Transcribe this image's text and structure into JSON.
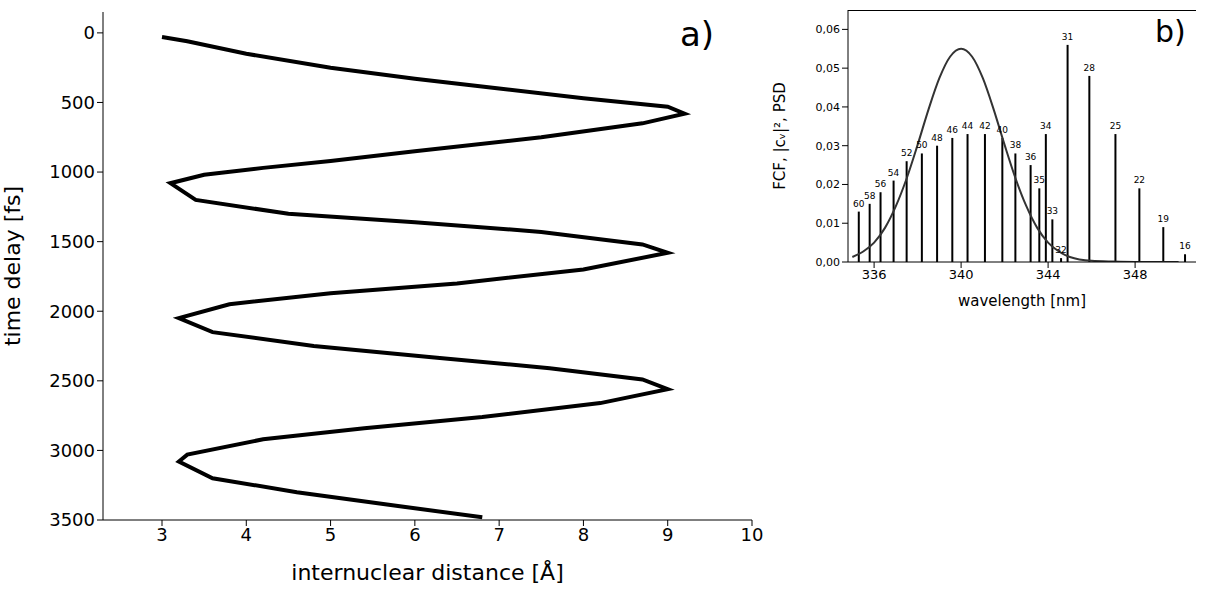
{
  "chart_data": [
    {
      "type": "line",
      "title": "a)",
      "x_label": "internuclear distance [Å]",
      "y_label": "time delay [fs]",
      "color": "#000000",
      "x": [
        3.0,
        3.3,
        4.0,
        5.0,
        6.0,
        7.0,
        8.0,
        9.0,
        9.2,
        8.7,
        7.5,
        6.0,
        5.0,
        4.2,
        3.5,
        3.1,
        3.4,
        4.5,
        6.0,
        7.5,
        8.7,
        9.0,
        8.0,
        6.5,
        5.0,
        3.8,
        3.2,
        3.6,
        4.8,
        6.2,
        7.6,
        8.7,
        9.0,
        8.2,
        6.8,
        5.4,
        4.2,
        3.3,
        3.2,
        3.6,
        4.6,
        5.8,
        6.8
      ],
      "values": [
        30,
        60,
        150,
        250,
        330,
        400,
        470,
        530,
        580,
        650,
        750,
        850,
        920,
        970,
        1020,
        1080,
        1200,
        1300,
        1360,
        1430,
        1520,
        1580,
        1700,
        1800,
        1870,
        1950,
        2050,
        2150,
        2250,
        2330,
        2410,
        2490,
        2560,
        2660,
        2760,
        2840,
        2920,
        3030,
        3080,
        3200,
        3300,
        3400,
        3480
      ],
      "xlim": [
        2.3,
        10
      ],
      "xticks": [
        3,
        4,
        5,
        6,
        7,
        8,
        9,
        10
      ],
      "ylim": [
        -150,
        3500
      ],
      "yticks": [
        0,
        500,
        1000,
        1500,
        2000,
        2500,
        3000,
        3500
      ]
    },
    {
      "type": "bar",
      "title": "b)",
      "x_label": "wavelength [nm]",
      "y_label": "FCF, |cᵥ|², PSD",
      "series": [
        {
          "name": "FCF",
          "type": "bar",
          "color": "#000000",
          "x": [
            335.3,
            335.8,
            336.3,
            336.9,
            337.5,
            338.2,
            338.9,
            339.6,
            340.3,
            341.1,
            341.9,
            342.5,
            343.2,
            343.6,
            343.9,
            344.2,
            344.6,
            344.9,
            345.9,
            347.1,
            348.2,
            349.3,
            350.3
          ],
          "values": [
            0.013,
            0.015,
            0.018,
            0.021,
            0.026,
            0.028,
            0.03,
            0.032,
            0.033,
            0.033,
            0.032,
            0.028,
            0.025,
            0.019,
            0.033,
            0.011,
            0.001,
            0.056,
            0.048,
            0.033,
            0.019,
            0.009,
            0.002
          ],
          "labels": [
            "60",
            "58",
            "56",
            "54",
            "52",
            "50",
            "48",
            "46",
            "44",
            "42",
            "40",
            "38",
            "36",
            "35",
            "34",
            "33",
            "32",
            "31",
            "28",
            "25",
            "22",
            "19",
            "16"
          ]
        },
        {
          "name": "PSD",
          "type": "line",
          "color": "#333333",
          "x": [
            335,
            335.5,
            336,
            336.5,
            337,
            337.5,
            338,
            338.5,
            339,
            339.5,
            340,
            340.5,
            341,
            341.5,
            342,
            342.5,
            343,
            343.5,
            344,
            344.5,
            345,
            346,
            347,
            348,
            350
          ],
          "values": [
            0.0013,
            0.0027,
            0.005,
            0.0088,
            0.0144,
            0.0216,
            0.0302,
            0.0393,
            0.0474,
            0.053,
            0.055,
            0.053,
            0.0474,
            0.0393,
            0.0302,
            0.0216,
            0.0144,
            0.0088,
            0.005,
            0.0027,
            0.0013,
            0.0003,
            0.0001,
            0,
            0
          ]
        }
      ],
      "xlim": [
        334.8,
        350.8
      ],
      "xticks": [
        336,
        340,
        344,
        348
      ],
      "ylim": [
        0,
        0.065
      ],
      "yticks": [
        {
          "value": 0,
          "label": "0,00"
        },
        {
          "value": 0.01,
          "label": "0,01"
        },
        {
          "value": 0.02,
          "label": "0,02"
        },
        {
          "value": 0.03,
          "label": "0,03"
        },
        {
          "value": 0.04,
          "label": "0,04"
        },
        {
          "value": 0.05,
          "label": "0,05"
        },
        {
          "value": 0.06,
          "label": "0,06"
        }
      ]
    }
  ]
}
